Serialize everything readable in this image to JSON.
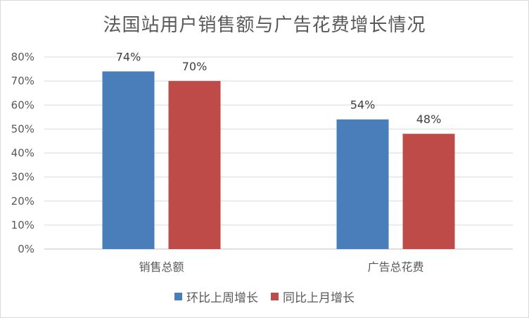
{
  "chart_data": {
    "type": "bar",
    "title": "法国站用户销售额与广告花费增长情况",
    "categories": [
      "销售总额",
      "广告总花费"
    ],
    "series": [
      {
        "name": "环比上周增长",
        "values": [
          74,
          54
        ],
        "color": "#4a7ebb"
      },
      {
        "name": "同比上月增长",
        "values": [
          70,
          48
        ],
        "color": "#be4b48"
      }
    ],
    "data_labels": [
      [
        "74%",
        "54%"
      ],
      [
        "70%",
        "48%"
      ]
    ],
    "y_ticks": [
      "0%",
      "10%",
      "20%",
      "30%",
      "40%",
      "50%",
      "60%",
      "70%",
      "80%"
    ],
    "ylim": [
      0,
      80
    ],
    "grid": true,
    "legend_position": "bottom"
  }
}
